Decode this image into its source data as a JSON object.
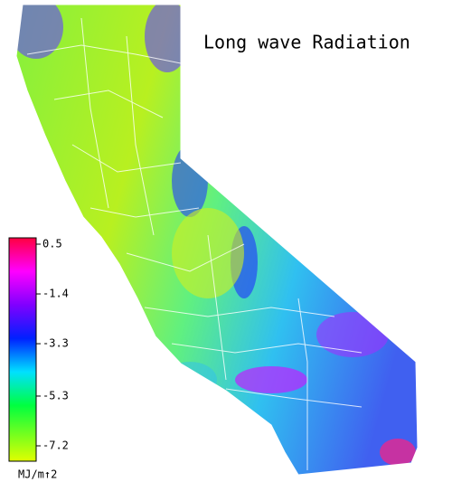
{
  "title": "Long wave Radiation",
  "colorbar": {
    "range": [
      -7.2,
      0.5
    ],
    "ticks": [
      0.5,
      -1.4,
      -3.3,
      -5.3,
      -7.2
    ],
    "unit": "MJ/m↑2"
  }
}
